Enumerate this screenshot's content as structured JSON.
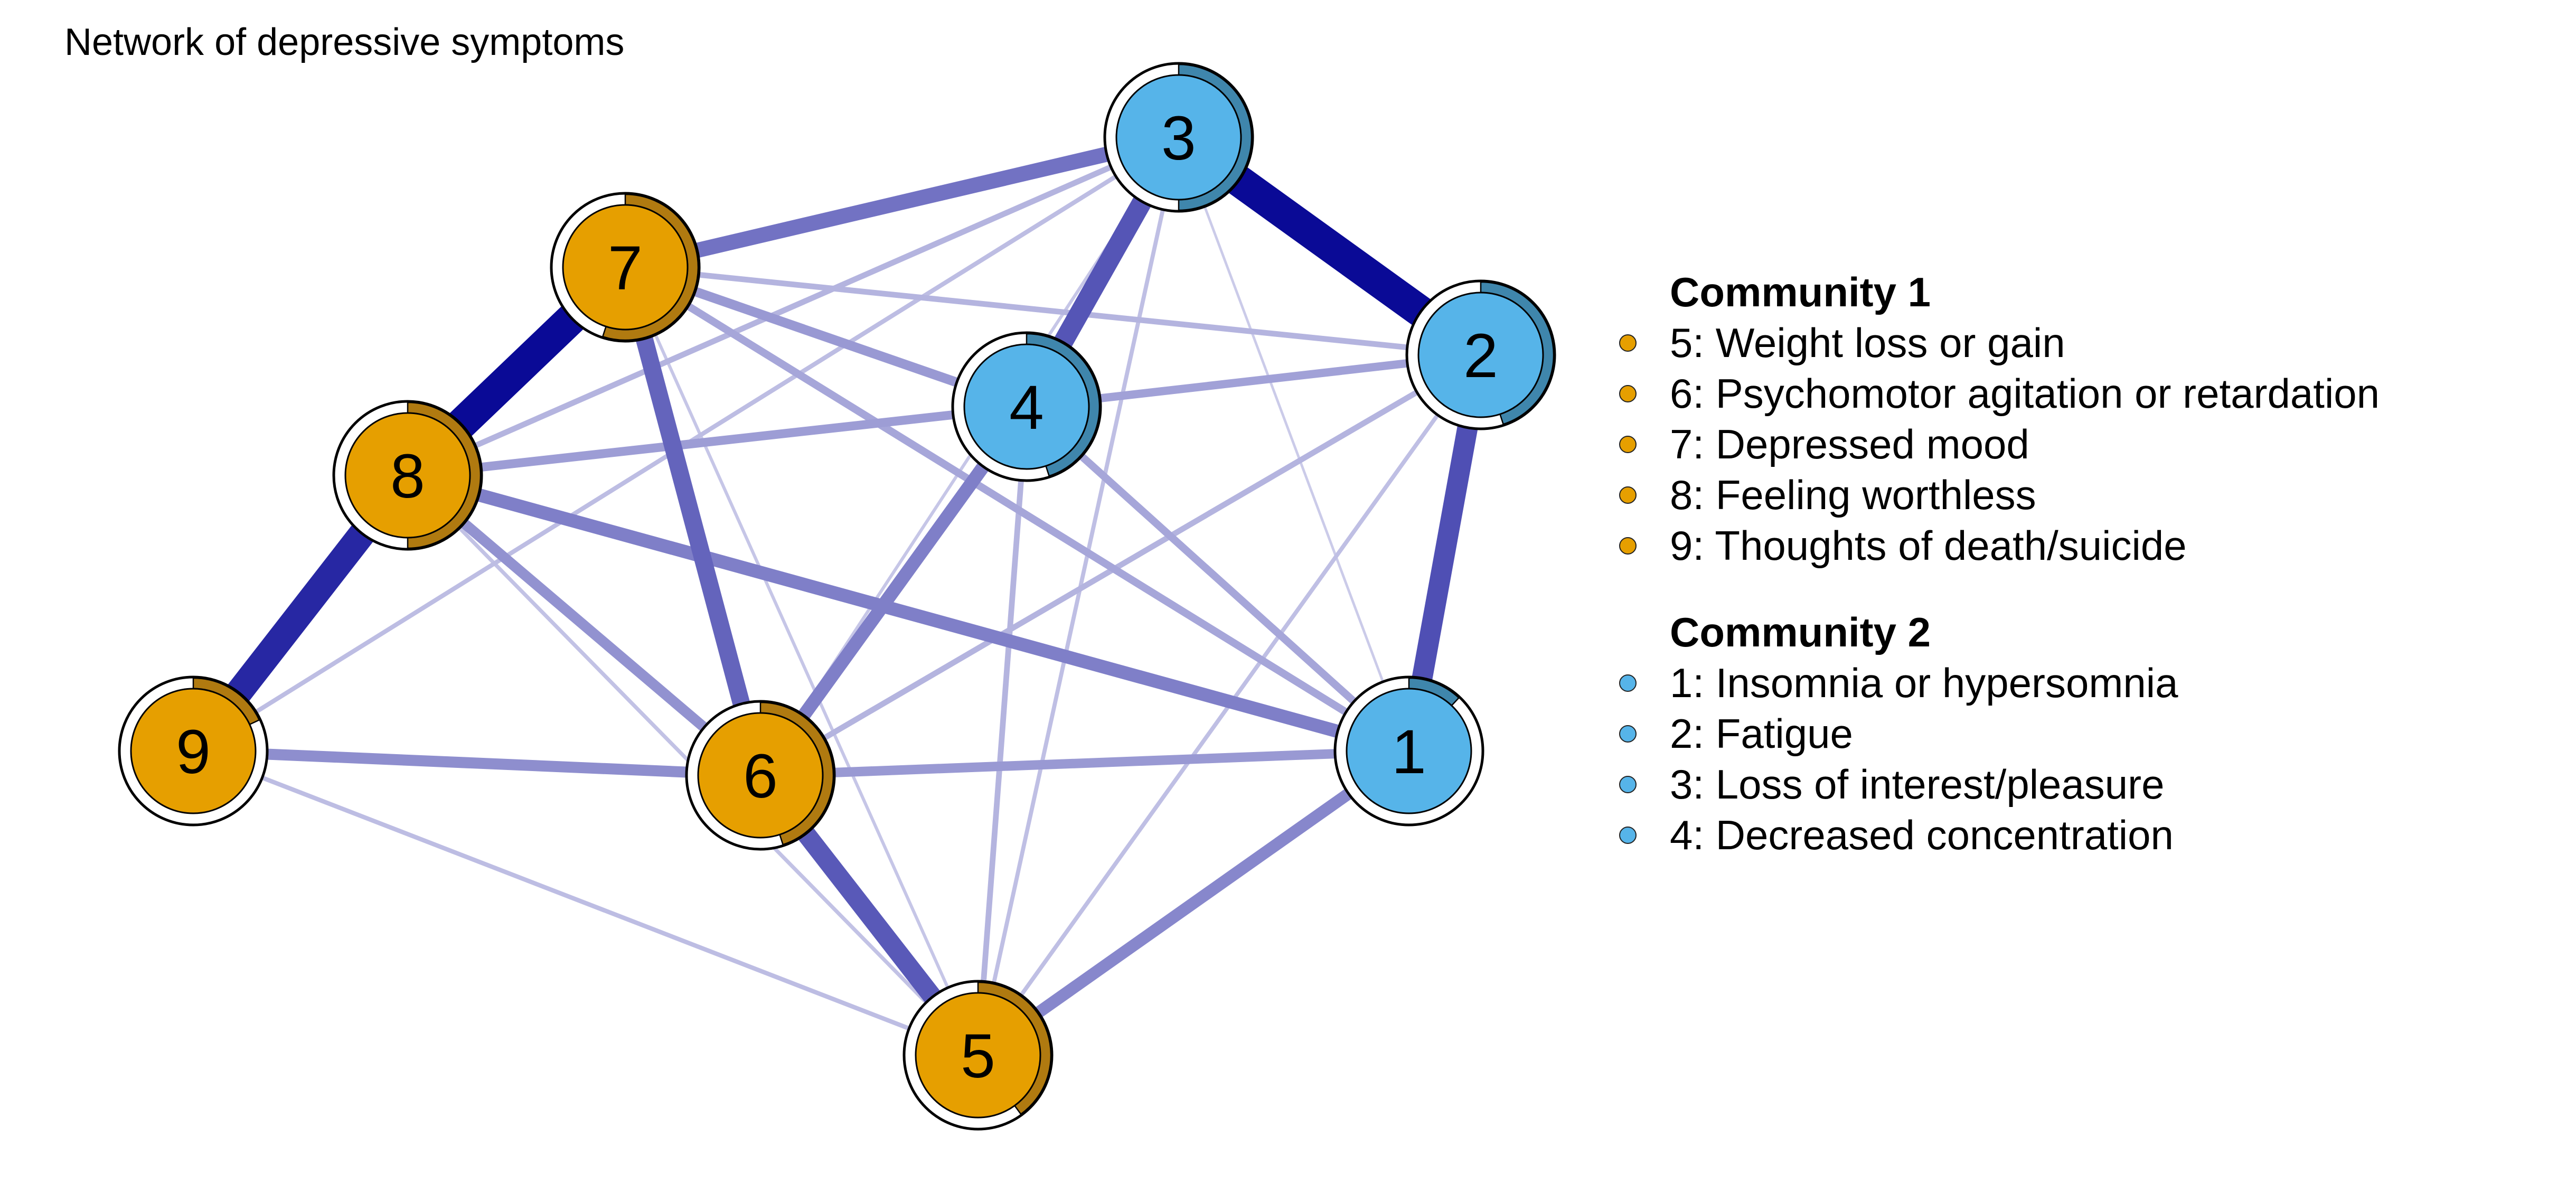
{
  "title": "Network of depressive symptoms",
  "colors": {
    "community1": "#E69F00",
    "community1_dark": "#B07A10",
    "community2": "#56B4E9",
    "community2_dark": "#3F86AC",
    "edge": "#0A0A96"
  },
  "nodes": [
    {
      "id": "1",
      "label": "1",
      "community": 2,
      "pie": 0.12
    },
    {
      "id": "2",
      "label": "2",
      "community": 2,
      "pie": 0.45
    },
    {
      "id": "3",
      "label": "3",
      "community": 2,
      "pie": 0.5
    },
    {
      "id": "4",
      "label": "4",
      "community": 2,
      "pie": 0.45
    },
    {
      "id": "5",
      "label": "5",
      "community": 1,
      "pie": 0.4
    },
    {
      "id": "6",
      "label": "6",
      "community": 1,
      "pie": 0.45
    },
    {
      "id": "7",
      "label": "7",
      "community": 1,
      "pie": 0.55
    },
    {
      "id": "8",
      "label": "8",
      "community": 1,
      "pie": 0.5
    },
    {
      "id": "9",
      "label": "9",
      "community": 1,
      "pie": 0.18
    }
  ],
  "edges": [
    {
      "from": "3",
      "to": "2",
      "weight": 1.0
    },
    {
      "from": "7",
      "to": "8",
      "weight": 1.0
    },
    {
      "from": "8",
      "to": "9",
      "weight": 0.85
    },
    {
      "from": "2",
      "to": "1",
      "weight": 0.65
    },
    {
      "from": "3",
      "to": "4",
      "weight": 0.62
    },
    {
      "from": "6",
      "to": "5",
      "weight": 0.6
    },
    {
      "from": "7",
      "to": "6",
      "weight": 0.55
    },
    {
      "from": "3",
      "to": "7",
      "weight": 0.48
    },
    {
      "from": "4",
      "to": "6",
      "weight": 0.42
    },
    {
      "from": "8",
      "to": "1",
      "weight": 0.42
    },
    {
      "from": "1",
      "to": "5",
      "weight": 0.38
    },
    {
      "from": "9",
      "to": "6",
      "weight": 0.35
    },
    {
      "from": "8",
      "to": "6",
      "weight": 0.33
    },
    {
      "from": "6",
      "to": "1",
      "weight": 0.3
    },
    {
      "from": "7",
      "to": "4",
      "weight": 0.3
    },
    {
      "from": "8",
      "to": "4",
      "weight": 0.28
    },
    {
      "from": "4",
      "to": "2",
      "weight": 0.26
    },
    {
      "from": "7",
      "to": "1",
      "weight": 0.24
    },
    {
      "from": "4",
      "to": "1",
      "weight": 0.24
    },
    {
      "from": "7",
      "to": "2",
      "weight": 0.18
    },
    {
      "from": "8",
      "to": "3",
      "weight": 0.18
    },
    {
      "from": "6",
      "to": "2",
      "weight": 0.18
    },
    {
      "from": "4",
      "to": "5",
      "weight": 0.18
    },
    {
      "from": "9",
      "to": "3",
      "weight": 0.14
    },
    {
      "from": "9",
      "to": "5",
      "weight": 0.14
    },
    {
      "from": "3",
      "to": "5",
      "weight": 0.13
    },
    {
      "from": "2",
      "to": "5",
      "weight": 0.13
    },
    {
      "from": "8",
      "to": "5",
      "weight": 0.12
    },
    {
      "from": "7",
      "to": "5",
      "weight": 0.1
    },
    {
      "from": "3",
      "to": "6",
      "weight": 0.1
    },
    {
      "from": "1",
      "to": "3",
      "weight": 0.08
    },
    {
      "from": "6",
      "to": "9",
      "weight": 0.06
    }
  ],
  "legend": {
    "groups": [
      {
        "heading": "Community 1",
        "community": 1,
        "items": [
          "5: Weight loss or gain",
          "6: Psychomotor agitation or retardation",
          "7: Depressed mood",
          "8: Feeling worthless",
          "9: Thoughts of death/suicide"
        ]
      },
      {
        "heading": "Community 2",
        "community": 2,
        "items": [
          "1: Insomnia or hypersomnia",
          "2: Fatigue",
          "3: Loss of interest/pleasure",
          "4: Decreased concentration"
        ]
      }
    ]
  }
}
